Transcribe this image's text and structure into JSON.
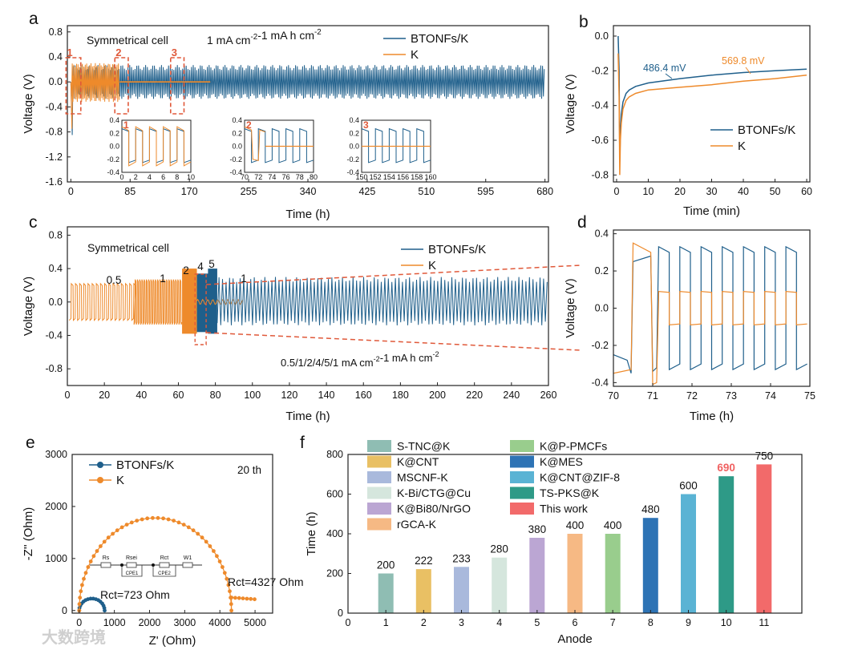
{
  "colors": {
    "blue": "#1f5f8b",
    "orange": "#ee8a2b",
    "callout": "#e0593a",
    "axis": "#222222",
    "highlight": "#f06161"
  },
  "chart_data": [
    {
      "panel": "a",
      "type": "line",
      "title": "Symmetrical cell",
      "condition": "1 mA cm-2-1 mA h cm-2",
      "xlabel": "Time (h)",
      "ylabel": "Voltage (V)",
      "xlim": [
        -5,
        685
      ],
      "ylim": [
        -1.6,
        0.9
      ],
      "xticks": [
        "0",
        "85",
        "170",
        "255",
        "340",
        "425",
        "510",
        "595",
        "680"
      ],
      "yticks": [
        "0.8",
        "0.4",
        "0.0",
        "-0.4",
        "-0.8",
        "-1.2",
        "-1.6"
      ],
      "series": [
        {
          "name": "BTONFs/K",
          "x_range": [
            0,
            680
          ],
          "band": [
            -0.27,
            0.27
          ],
          "notes": "stable polarization ~±0.25 V"
        },
        {
          "name": "K",
          "x_range": [
            0,
            200
          ],
          "band": [
            -0.32,
            0.3
          ],
          "notes": "short-circuit after ~70 h (flat ~0 V)"
        }
      ],
      "callouts": [
        "1",
        "2",
        "3"
      ],
      "insets": [
        {
          "label": "1",
          "xlim": [
            0,
            10
          ],
          "ylim": [
            -0.4,
            0.4
          ],
          "xticks": [
            "0",
            "2",
            "4",
            "6",
            "8",
            "10"
          ],
          "yticks": [
            "0.4",
            "0.2",
            "0.0",
            "-0.2",
            "-0.4"
          ]
        },
        {
          "label": "2",
          "xlim": [
            70,
            80
          ],
          "ylim": [
            -0.4,
            0.4
          ],
          "xticks": [
            "70",
            "72",
            "74",
            "76",
            "78",
            "80"
          ],
          "yticks": [
            "0.4",
            "0.2",
            "0.0",
            "-0.2",
            "-0.4"
          ]
        },
        {
          "label": "3",
          "xlim": [
            150,
            160
          ],
          "ylim": [
            -0.4,
            0.4
          ],
          "xticks": [
            "150",
            "152",
            "154",
            "156",
            "158",
            "160"
          ],
          "yticks": [
            "0.4",
            "0.2",
            "0.0",
            "-0.2",
            "-0.4"
          ]
        }
      ]
    },
    {
      "panel": "b",
      "type": "line",
      "xlabel": "Time (min)",
      "ylabel": "Voltage (V)",
      "xlim": [
        -1,
        61
      ],
      "ylim": [
        -0.84,
        0.06
      ],
      "xticks": [
        "0",
        "10",
        "20",
        "30",
        "40",
        "50",
        "60"
      ],
      "yticks": [
        "0.0",
        "-0.2",
        "-0.4",
        "-0.6",
        "-0.8"
      ],
      "series": [
        {
          "name": "BTONFs/K",
          "x": [
            0.5,
            0.8,
            1.0,
            1.2,
            1.5,
            2,
            3,
            4,
            6,
            10,
            20,
            30,
            40,
            50,
            60
          ],
          "y": [
            0.0,
            -0.2,
            -0.72,
            -0.55,
            -0.45,
            -0.38,
            -0.33,
            -0.31,
            -0.29,
            -0.27,
            -0.245,
            -0.225,
            -0.21,
            -0.2,
            -0.19
          ]
        },
        {
          "name": "K",
          "x": [
            0.5,
            0.8,
            1.0,
            1.2,
            1.5,
            2,
            3,
            4,
            6,
            10,
            20,
            30,
            40,
            50,
            60
          ],
          "y": [
            -0.1,
            -0.35,
            -0.8,
            -0.6,
            -0.5,
            -0.42,
            -0.37,
            -0.35,
            -0.33,
            -0.31,
            -0.295,
            -0.28,
            -0.26,
            -0.245,
            -0.225
          ]
        }
      ],
      "annotations": [
        "486.4 mV",
        "569.8 mV"
      ]
    },
    {
      "panel": "c",
      "type": "line",
      "title": "Symmetrical cell",
      "condition": "0.5/1/2/4/5/1 mA cm-2-1 mA h cm-2",
      "xlabel": "Time (h)",
      "ylabel": "Voltage (V)",
      "xlim": [
        0,
        260
      ],
      "ylim": [
        -1.0,
        0.9
      ],
      "xticks": [
        "0",
        "20",
        "40",
        "60",
        "80",
        "100",
        "120",
        "140",
        "160",
        "180",
        "200",
        "220",
        "240",
        "260"
      ],
      "yticks": [
        "0.8",
        "0.4",
        "0.0",
        "-0.4",
        "-0.8"
      ],
      "rate_labels": [
        "0.5",
        "1",
        "2",
        "4",
        "5",
        "1"
      ]
    },
    {
      "panel": "d",
      "type": "line",
      "xlabel": "Time (h)",
      "ylabel": "Voltage (V)",
      "xlim": [
        70,
        75
      ],
      "ylim": [
        -0.42,
        0.42
      ],
      "xticks": [
        "70",
        "71",
        "72",
        "73",
        "74",
        "75"
      ],
      "yticks": [
        "0.4",
        "0.2",
        "0.0",
        "-0.2",
        "-0.4"
      ],
      "series": [
        {
          "name": "BTONFs/K",
          "notes": "square-wave ~±0.35 V after 71 h"
        },
        {
          "name": "K",
          "notes": "~±0.09 V after 71 h"
        }
      ]
    },
    {
      "panel": "e",
      "type": "scatter",
      "title": "20 th",
      "xlabel": "Z' (Ohm)",
      "ylabel": "-Z'' (Ohm)",
      "xlim": [
        -200,
        5500
      ],
      "ylim": [
        -50,
        3000
      ],
      "xticks": [
        "0",
        "1000",
        "2000",
        "3000",
        "4000",
        "5000"
      ],
      "yticks": [
        "0",
        "1000",
        "2000",
        "3000"
      ],
      "series": [
        {
          "name": "BTONFs/K",
          "semicircle": {
            "start": 0,
            "end": 723,
            "peak": 230
          }
        },
        {
          "name": "K",
          "semicircle": {
            "start": 0,
            "end": 4327,
            "peak": 1780
          },
          "tail_to": 5050
        }
      ],
      "annotations": [
        "Rct=723 Ohm",
        "Rct=4327 Ohm"
      ],
      "circuit_labels": [
        "Rs",
        "Rsei",
        "Rct",
        "W1",
        "CPE1",
        "CPE2"
      ]
    },
    {
      "panel": "f",
      "type": "bar",
      "xlabel": "Anode",
      "ylabel": "Time (h)",
      "xlim": [
        0,
        12
      ],
      "ylim": [
        0,
        800
      ],
      "xticks": [
        "0",
        "1",
        "2",
        "3",
        "4",
        "5",
        "6",
        "7",
        "8",
        "9",
        "10",
        "11"
      ],
      "yticks": [
        "0",
        "200",
        "400",
        "600",
        "800"
      ],
      "categories": [
        "1",
        "2",
        "3",
        "4",
        "5",
        "6",
        "7",
        "8",
        "9",
        "10",
        "11"
      ],
      "values": [
        200,
        222,
        233,
        280,
        380,
        400,
        400,
        480,
        600,
        690,
        750
      ],
      "labels": [
        "200",
        "222",
        "233",
        "280",
        "380",
        "400",
        "400",
        "480",
        "600",
        "690",
        "750"
      ],
      "legend": [
        "S-TNC@K",
        "K@CNT",
        "MSCNF-K",
        "K-Bi/CTG@Cu",
        "K@Bi80/NrGO",
        "rGCA-K",
        "K@P-PMCFs",
        "K@MES",
        "K@CNT@ZIF-8",
        "TS-PKS@K",
        "This work"
      ],
      "bar_colors": [
        "#8fbdb3",
        "#e9c064",
        "#a9b9dc",
        "#d5e6dd",
        "#bba6d3",
        "#f6b984",
        "#99cd8d",
        "#2d73b5",
        "#5ab3d4",
        "#2e9a87",
        "#f26a6a"
      ]
    }
  ],
  "panel_labels": [
    "a",
    "b",
    "c",
    "d",
    "e",
    "f"
  ],
  "watermark": "大数跨境"
}
